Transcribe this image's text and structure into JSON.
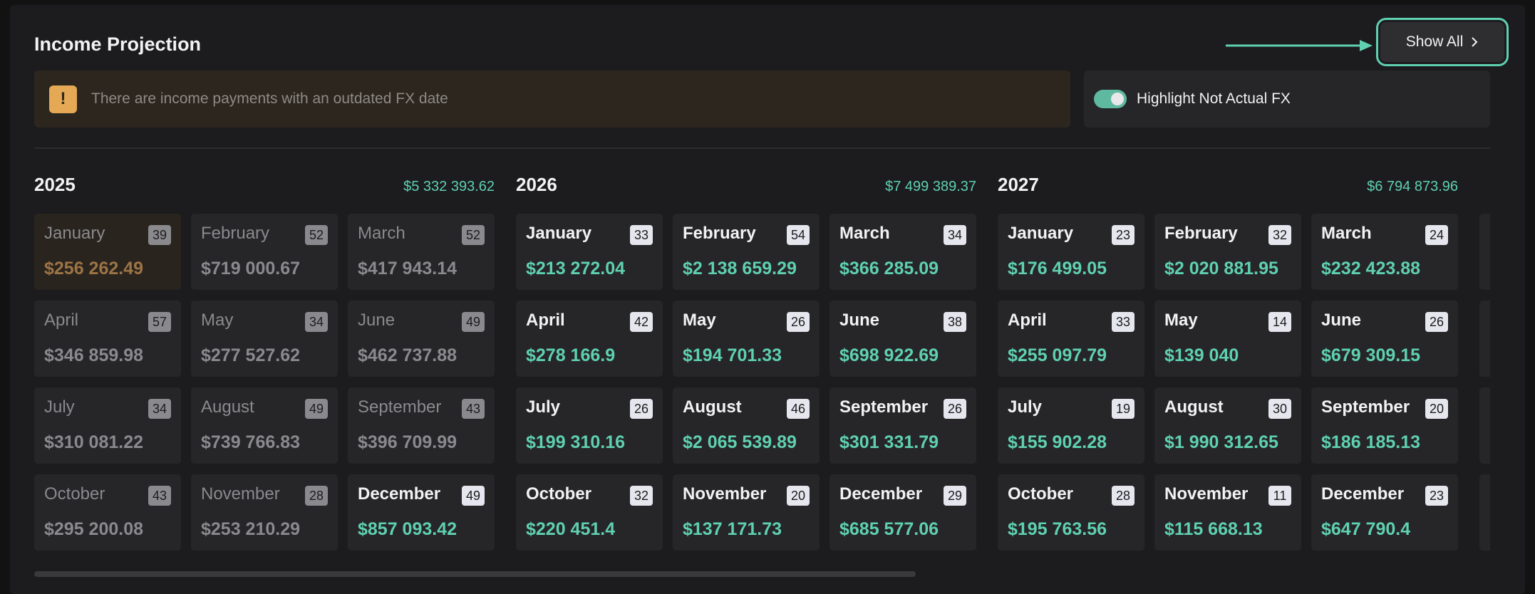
{
  "header": {
    "title": "Income Projection",
    "button": "Show All"
  },
  "warning": {
    "icon": "!",
    "text": "There are income payments with an outdated FX date"
  },
  "toggle": {
    "label": "Highlight Not Actual FX",
    "on": true
  },
  "years": [
    {
      "year": "2025",
      "total": "$5 332 393.62",
      "months": [
        {
          "name": "January",
          "count": "39",
          "amount": "$256 262.49",
          "state": "outdated"
        },
        {
          "name": "February",
          "count": "52",
          "amount": "$719 000.67",
          "state": "past"
        },
        {
          "name": "March",
          "count": "52",
          "amount": "$417 943.14",
          "state": "past"
        },
        {
          "name": "April",
          "count": "57",
          "amount": "$346 859.98",
          "state": "past"
        },
        {
          "name": "May",
          "count": "34",
          "amount": "$277 527.62",
          "state": "past"
        },
        {
          "name": "June",
          "count": "49",
          "amount": "$462 737.88",
          "state": "past"
        },
        {
          "name": "July",
          "count": "34",
          "amount": "$310 081.22",
          "state": "past"
        },
        {
          "name": "August",
          "count": "49",
          "amount": "$739 766.83",
          "state": "past"
        },
        {
          "name": "September",
          "count": "43",
          "amount": "$396 709.99",
          "state": "past"
        },
        {
          "name": "October",
          "count": "43",
          "amount": "$295 200.08",
          "state": "past"
        },
        {
          "name": "November",
          "count": "28",
          "amount": "$253 210.29",
          "state": "past"
        },
        {
          "name": "December",
          "count": "49",
          "amount": "$857 093.42",
          "state": "active"
        }
      ]
    },
    {
      "year": "2026",
      "total": "$7 499 389.37",
      "months": [
        {
          "name": "January",
          "count": "33",
          "amount": "$213 272.04",
          "state": "active"
        },
        {
          "name": "February",
          "count": "54",
          "amount": "$2 138 659.29",
          "state": "active"
        },
        {
          "name": "March",
          "count": "34",
          "amount": "$366 285.09",
          "state": "active"
        },
        {
          "name": "April",
          "count": "42",
          "amount": "$278 166.9",
          "state": "active"
        },
        {
          "name": "May",
          "count": "26",
          "amount": "$194 701.33",
          "state": "active"
        },
        {
          "name": "June",
          "count": "38",
          "amount": "$698 922.69",
          "state": "active"
        },
        {
          "name": "July",
          "count": "26",
          "amount": "$199 310.16",
          "state": "active"
        },
        {
          "name": "August",
          "count": "46",
          "amount": "$2 065 539.89",
          "state": "active"
        },
        {
          "name": "September",
          "count": "26",
          "amount": "$301 331.79",
          "state": "active"
        },
        {
          "name": "October",
          "count": "32",
          "amount": "$220 451.4",
          "state": "active"
        },
        {
          "name": "November",
          "count": "20",
          "amount": "$137 171.73",
          "state": "active"
        },
        {
          "name": "December",
          "count": "29",
          "amount": "$685 577.06",
          "state": "active"
        }
      ]
    },
    {
      "year": "2027",
      "total": "$6 794 873.96",
      "months": [
        {
          "name": "January",
          "count": "23",
          "amount": "$176 499.05",
          "state": "active"
        },
        {
          "name": "February",
          "count": "32",
          "amount": "$2 020 881.95",
          "state": "active"
        },
        {
          "name": "March",
          "count": "24",
          "amount": "$232 423.88",
          "state": "active"
        },
        {
          "name": "April",
          "count": "33",
          "amount": "$255 097.79",
          "state": "active"
        },
        {
          "name": "May",
          "count": "14",
          "amount": "$139 040",
          "state": "active"
        },
        {
          "name": "June",
          "count": "26",
          "amount": "$679 309.15",
          "state": "active"
        },
        {
          "name": "July",
          "count": "19",
          "amount": "$155 902.28",
          "state": "active"
        },
        {
          "name": "August",
          "count": "30",
          "amount": "$1 990 312.65",
          "state": "active"
        },
        {
          "name": "September",
          "count": "20",
          "amount": "$186 185.13",
          "state": "active"
        },
        {
          "name": "October",
          "count": "28",
          "amount": "$195 763.56",
          "state": "active"
        },
        {
          "name": "November",
          "count": "11",
          "amount": "$115 668.13",
          "state": "active"
        },
        {
          "name": "December",
          "count": "23",
          "amount": "$647 790.4",
          "state": "active"
        }
      ]
    }
  ]
}
